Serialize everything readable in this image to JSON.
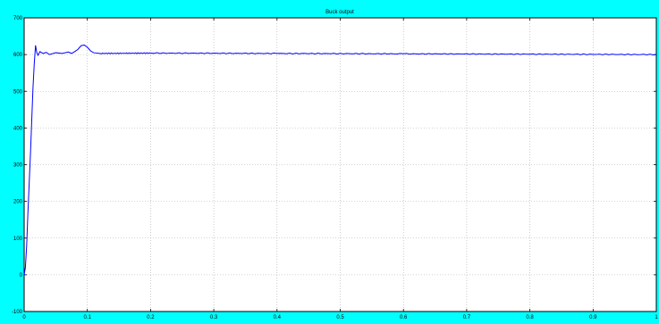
{
  "chart_data": {
    "type": "line",
    "title": "Buck output",
    "xlabel": "",
    "ylabel": "",
    "xlim": [
      0,
      1
    ],
    "ylim": [
      -100,
      700
    ],
    "grid": true,
    "x_ticks": [
      "0",
      "0.1",
      "0.2",
      "0.3",
      "0.4",
      "0.5",
      "0.6",
      "0.7",
      "0.8",
      "0.9",
      "1"
    ],
    "y_ticks": [
      "-100",
      "0",
      "100",
      "200",
      "300",
      "400",
      "500",
      "600",
      "700"
    ],
    "series": [
      {
        "color": "#0000ff",
        "x": [
          0,
          0.002,
          0.004,
          0.006,
          0.008,
          0.01,
          0.012,
          0.014,
          0.016,
          0.018,
          0.02,
          0.022,
          0.025,
          0.03,
          0.035,
          0.04,
          0.05,
          0.06,
          0.07,
          0.075,
          0.08,
          0.085,
          0.09,
          0.095,
          0.1,
          0.105,
          0.11,
          0.12,
          0.2,
          0.4,
          0.6,
          0.8,
          1.0
        ],
        "y": [
          0,
          20,
          80,
          170,
          250,
          330,
          420,
          510,
          575,
          625,
          605,
          598,
          608,
          603,
          606,
          600,
          605,
          603,
          607,
          603,
          608,
          614,
          624,
          626,
          620,
          610,
          605,
          603,
          604,
          603,
          602,
          601,
          600
        ]
      }
    ]
  },
  "colors": {
    "figure_background": "#00ffff",
    "plot_background": "#ffffff",
    "grid": "#aaaaaa",
    "series": "#0000ff"
  }
}
